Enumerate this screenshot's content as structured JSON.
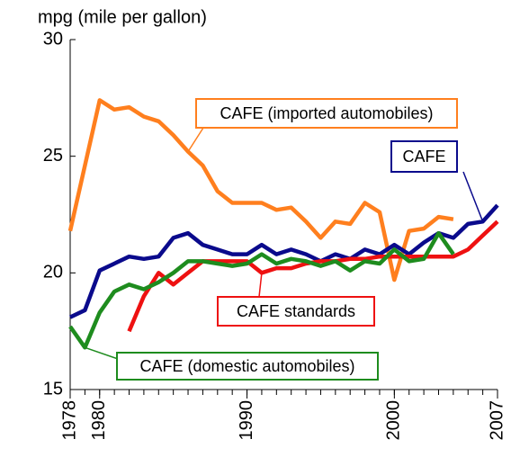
{
  "chart_data": {
    "type": "line",
    "y_label": "mpg (mile per gallon)",
    "x": [
      1978,
      1979,
      1980,
      1981,
      1982,
      1983,
      1984,
      1985,
      1986,
      1987,
      1988,
      1989,
      1990,
      1991,
      1992,
      1993,
      1994,
      1995,
      1996,
      1997,
      1998,
      1999,
      2000,
      2001,
      2002,
      2003,
      2004,
      2005,
      2006,
      2007
    ],
    "xlim": [
      1978,
      2007
    ],
    "xticks": [
      1978,
      1980,
      1990,
      2000,
      2007
    ],
    "ylim": [
      15,
      30
    ],
    "yticks": [
      15,
      20,
      25,
      30
    ],
    "series": [
      {
        "name": "CAFE (imported automobiles)",
        "color": "#ff7f1e",
        "values": [
          21.8,
          24.6,
          27.4,
          27.0,
          27.1,
          26.7,
          26.5,
          25.9,
          25.2,
          24.6,
          23.5,
          23.0,
          23.0,
          23.0,
          22.7,
          22.8,
          22.2,
          21.5,
          22.2,
          22.1,
          23.0,
          22.6,
          19.7,
          21.8,
          21.9,
          22.4,
          22.3,
          null,
          null,
          null
        ]
      },
      {
        "name": "CAFE",
        "color": "#0a0a8c",
        "values": [
          18.1,
          18.4,
          20.1,
          20.4,
          20.7,
          20.6,
          20.7,
          21.5,
          21.7,
          21.2,
          21.0,
          20.8,
          20.8,
          21.2,
          20.8,
          21.0,
          20.8,
          20.5,
          20.8,
          20.6,
          21.0,
          20.8,
          21.2,
          20.8,
          21.3,
          21.7,
          21.5,
          22.1,
          22.2,
          22.9
        ]
      },
      {
        "name": "CAFE standards",
        "color": "#ee1111",
        "values": [
          null,
          null,
          null,
          null,
          17.5,
          19.0,
          20.0,
          19.5,
          20.0,
          20.5,
          20.5,
          20.5,
          20.5,
          20.0,
          20.2,
          20.2,
          20.4,
          20.5,
          20.5,
          20.6,
          20.6,
          20.7,
          20.7,
          20.7,
          20.7,
          20.7,
          20.7,
          21.0,
          21.6,
          22.2
        ]
      },
      {
        "name": "CAFE (domestic automobiles)",
        "color": "#1e8c1e",
        "values": [
          17.7,
          16.8,
          18.3,
          19.2,
          19.5,
          19.3,
          19.6,
          20.0,
          20.5,
          20.5,
          20.4,
          20.3,
          20.4,
          20.8,
          20.4,
          20.6,
          20.5,
          20.3,
          20.5,
          20.1,
          20.5,
          20.4,
          21.0,
          20.5,
          20.6,
          21.7,
          20.8,
          null,
          null,
          null
        ]
      }
    ]
  }
}
